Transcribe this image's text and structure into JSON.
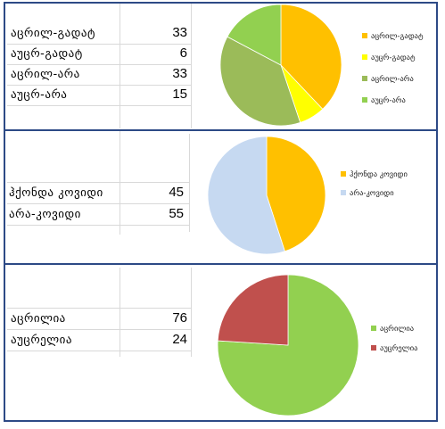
{
  "chart_data": [
    {
      "type": "pie",
      "categories": [
        "აცრილ-გადატ",
        "აუცრ-გადატ",
        "აცრილ-არა",
        "აუცრ-არა"
      ],
      "values": [
        33,
        6,
        33,
        15
      ],
      "colors": [
        "#ffc000",
        "#ffff00",
        "#9bbb59",
        "#92d050"
      ],
      "legend_position": "right"
    },
    {
      "type": "pie",
      "categories": [
        "ჰქონდა კოვიდი",
        "არა-კოვიდი"
      ],
      "values": [
        45,
        55
      ],
      "colors": [
        "#ffc000",
        "#c6d9f1"
      ],
      "legend_position": "right"
    },
    {
      "type": "pie",
      "categories": [
        "აცრილია",
        "აუცრელია"
      ],
      "values": [
        76,
        24
      ],
      "colors": [
        "#92d050",
        "#c0504d"
      ],
      "legend_position": "right"
    }
  ]
}
